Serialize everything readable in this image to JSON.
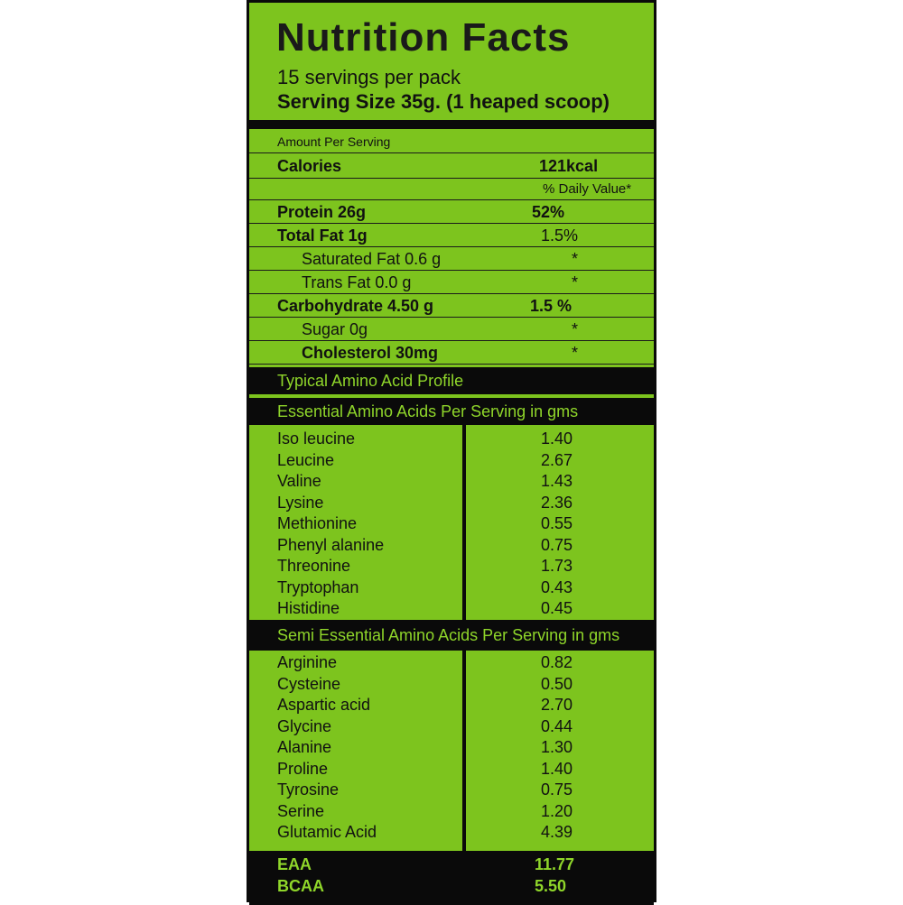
{
  "header": {
    "title": "Nutrition Facts",
    "servings": "15 servings per pack",
    "serving_size": "Serving Size 35g. (1 heaped scoop)"
  },
  "facts": {
    "amount_per_serving": "Amount Per Serving",
    "calories_label": "Calories",
    "calories_value": "121kcal",
    "dv_label": "% Daily Value*",
    "rows": [
      {
        "label": "Protein 26g",
        "value": "52%"
      },
      {
        "label": "Total Fat 1g",
        "value": "1.5%"
      },
      {
        "label": "Saturated Fat 0.6 g",
        "value": "*"
      },
      {
        "label": "Trans Fat 0.0 g",
        "value": "*"
      },
      {
        "label": "Carbohydrate 4.50 g",
        "value": "1.5 %"
      },
      {
        "label": "Sugar 0g",
        "value": "*"
      },
      {
        "label": "Cholesterol 30mg",
        "value": "*"
      }
    ]
  },
  "profile": {
    "title": "Typical Amino Acid Profile",
    "essential_title": "Essential Amino Acids Per Serving in gms",
    "essential": [
      {
        "name": "Iso leucine",
        "value": "1.40"
      },
      {
        "name": "Leucine",
        "value": "2.67"
      },
      {
        "name": "Valine",
        "value": "1.43"
      },
      {
        "name": "Lysine",
        "value": "2.36"
      },
      {
        "name": "Methionine",
        "value": "0.55"
      },
      {
        "name": "Phenyl alanine",
        "value": "0.75"
      },
      {
        "name": "Threonine",
        "value": "1.73"
      },
      {
        "name": "Tryptophan",
        "value": "0.43"
      },
      {
        "name": "Histidine",
        "value": "0.45"
      }
    ],
    "semi_title": "Semi Essential Amino Acids Per Serving in gms",
    "semi": [
      {
        "name": "Arginine",
        "value": "0.82"
      },
      {
        "name": "Cysteine",
        "value": "0.50"
      },
      {
        "name": "Aspartic acid",
        "value": "2.70"
      },
      {
        "name": "Glycine",
        "value": "0.44"
      },
      {
        "name": "Alanine",
        "value": "1.30"
      },
      {
        "name": "Proline",
        "value": "1.40"
      },
      {
        "name": "Tyrosine",
        "value": "0.75"
      },
      {
        "name": "Serine",
        "value": "1.20"
      },
      {
        "name": "Glutamic Acid",
        "value": "4.39"
      }
    ]
  },
  "totals": {
    "eaa_label": "EAA",
    "eaa_value": "11.77",
    "bcaa_label": "BCAA",
    "bcaa_value": "5.50"
  },
  "colors": {
    "panel": "#7dc41e",
    "accent_text": "#8fd62a",
    "bars": "#0a0a0a"
  }
}
